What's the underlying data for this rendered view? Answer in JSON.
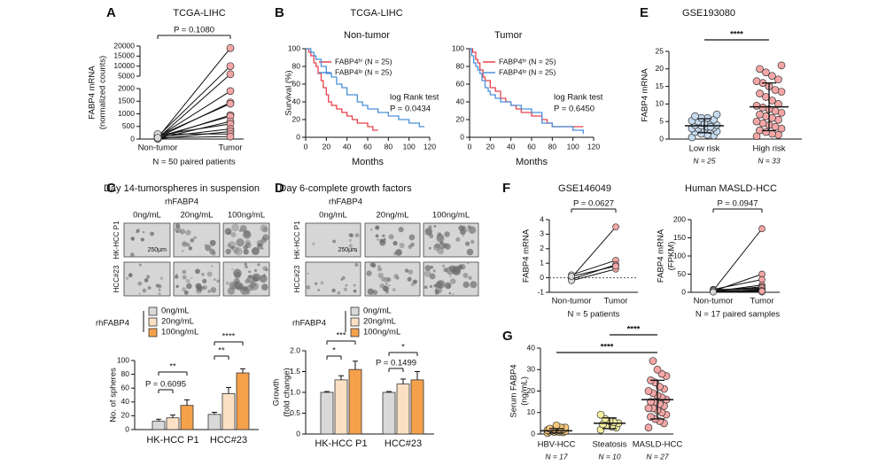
{
  "chart_data": [
    {
      "type": "paired",
      "label": "A",
      "title": "TCGA-LIHC",
      "ylabel": [
        "FABP4 mRNA",
        "(normalized counts)"
      ],
      "categories": [
        "Non-tumor",
        "Tumor"
      ],
      "colors": [
        "#d9d9d9",
        "#f4a6a6"
      ],
      "pairs": [
        [
          50,
          19000
        ],
        [
          100,
          10000
        ],
        [
          30,
          6000
        ],
        [
          80,
          1900
        ],
        [
          60,
          1450
        ],
        [
          120,
          1400
        ],
        [
          40,
          950
        ],
        [
          90,
          900
        ],
        [
          20,
          700
        ],
        [
          150,
          600
        ],
        [
          70,
          400
        ],
        [
          10,
          300
        ],
        [
          200,
          200
        ],
        [
          50,
          100
        ]
      ],
      "ylim": [
        0,
        2000
      ],
      "yticks": [
        0,
        500,
        1000,
        1500,
        2000
      ],
      "upper_ylim": [
        5000,
        20000
      ],
      "upper_yticks": [
        5000,
        10000,
        15000,
        20000
      ],
      "annotation": "P = 0.1080",
      "note": "N = 50 paired patients"
    },
    {
      "type": "survival",
      "label": "B",
      "title": "TCGA-LIHC",
      "subtitle": "Non-tumor",
      "xlabel": "Months",
      "ylabel": "Survival (%)",
      "xlim": [
        0,
        120
      ],
      "xticks": [
        0,
        20,
        40,
        60,
        80,
        100,
        120
      ],
      "ylim": [
        0,
        100
      ],
      "yticks": [
        0,
        20,
        40,
        60,
        80,
        100
      ],
      "series": [
        {
          "name": "FABP4ʰⁱ (N = 25)",
          "color": "#e8414a",
          "x": [
            0,
            3,
            5,
            8,
            10,
            12,
            15,
            17,
            20,
            22,
            25,
            30,
            35,
            40,
            45,
            50,
            60,
            65,
            70
          ],
          "values": [
            100,
            96,
            92,
            84,
            80,
            72,
            64,
            56,
            48,
            40,
            36,
            32,
            28,
            24,
            20,
            16,
            12,
            8,
            8
          ]
        },
        {
          "name": "FABP4ˡᵒ (N = 25)",
          "color": "#4a90d9",
          "x": [
            0,
            5,
            8,
            10,
            15,
            20,
            25,
            30,
            35,
            40,
            50,
            55,
            60,
            70,
            80,
            90,
            100,
            110,
            115
          ],
          "values": [
            100,
            96,
            92,
            88,
            80,
            72,
            68,
            60,
            56,
            48,
            40,
            36,
            32,
            28,
            24,
            20,
            16,
            12,
            12
          ]
        }
      ],
      "annotations": [
        "log Rank test",
        "P = 0.0434"
      ]
    },
    {
      "type": "survival",
      "subtitle": "Tumor",
      "xlabel": "Months",
      "xlim": [
        0,
        120
      ],
      "xticks": [
        0,
        20,
        40,
        60,
        80,
        100,
        120
      ],
      "ylim": [
        0,
        100
      ],
      "yticks": [
        0,
        20,
        40,
        60,
        80,
        100
      ],
      "series": [
        {
          "name": "FABP4ʰⁱ (N = 25)",
          "color": "#e8414a",
          "x": [
            0,
            3,
            6,
            8,
            10,
            13,
            15,
            20,
            25,
            30,
            35,
            40,
            45,
            50,
            60,
            70,
            75,
            80,
            110
          ],
          "values": [
            100,
            96,
            88,
            84,
            76,
            68,
            64,
            56,
            52,
            44,
            40,
            36,
            32,
            28,
            24,
            20,
            16,
            12,
            12
          ]
        },
        {
          "name": "FABP4ˡᵒ (N = 25)",
          "color": "#4a90d9",
          "x": [
            0,
            2,
            4,
            6,
            8,
            10,
            12,
            15,
            18,
            20,
            25,
            30,
            40,
            50,
            60,
            70,
            80,
            100,
            110
          ],
          "values": [
            100,
            92,
            84,
            80,
            76,
            72,
            64,
            56,
            52,
            48,
            44,
            40,
            36,
            32,
            28,
            16,
            12,
            8,
            4
          ]
        }
      ],
      "annotations": [
        "log Rank test",
        "P = 0.6450"
      ]
    },
    {
      "type": "dot",
      "label": "E",
      "title": "GSE193080",
      "ylabel": [
        "FABP4 mRNA"
      ],
      "categories": [
        "Low risk",
        "High risk"
      ],
      "n_labels": [
        "N = 25",
        "N = 33"
      ],
      "colors": [
        "#c6dbef",
        "#f4a6a6"
      ],
      "points": [
        [
          0.5,
          1,
          1.2,
          1.5,
          2,
          2.2,
          2.5,
          2.8,
          3,
          3,
          3.2,
          3.5,
          3.8,
          4,
          4,
          4.2,
          4.5,
          5,
          5.2,
          5.5,
          6,
          6,
          6.5,
          7,
          3.5
        ],
        [
          0.8,
          1.2,
          1.5,
          2,
          2.5,
          3,
          3.5,
          4,
          4.5,
          5,
          5.5,
          6,
          6.5,
          7,
          7.5,
          8,
          8.5,
          9,
          9.5,
          10,
          11,
          12,
          13,
          13.5,
          14,
          15,
          16,
          16.5,
          17,
          18,
          19,
          20,
          21
        ]
      ],
      "means": [
        3.8,
        9.2
      ],
      "sds": [
        2.0,
        6.8
      ],
      "ylim": [
        0,
        25
      ],
      "yticks": [
        0,
        5,
        10,
        15,
        20,
        25
      ],
      "annotations": [
        "****"
      ]
    },
    {
      "type": "images",
      "label": "C",
      "title": "Day 14-tumorspheres in suspension",
      "subtitle": "rhFABP4",
      "columns": [
        "0ng/mL",
        "20ng/mL",
        "100ng/mL"
      ],
      "rows": [
        "HK-HCC P1",
        "HCC#23"
      ],
      "scale_bar": "250µm"
    },
    {
      "type": "bar",
      "legend_title": "rhFABP4",
      "ylabel": [
        "No. of spheres"
      ],
      "categories": [
        "HK-HCC P1",
        "HCC#23"
      ],
      "series": [
        {
          "name": "0ng/mL",
          "color": "#d9d9d9",
          "values": [
            12,
            22
          ],
          "errors": [
            3,
            3
          ]
        },
        {
          "name": "20ng/mL",
          "color": "#fbe0c4",
          "values": [
            17,
            52
          ],
          "errors": [
            4,
            9
          ]
        },
        {
          "name": "100ng/mL",
          "color": "#f5a14b",
          "values": [
            35,
            82
          ],
          "errors": [
            8,
            6
          ]
        }
      ],
      "ylim": [
        0,
        100
      ],
      "yticks": [
        0,
        20,
        40,
        60,
        80,
        100
      ],
      "annotations": [
        "**",
        "P = 0.6095",
        "****",
        "**"
      ]
    },
    {
      "type": "images",
      "label": "D",
      "title": "Day 6-complete growth factors",
      "subtitle": "rhFABP4",
      "columns": [
        "0ng/mL",
        "20ng/mL",
        "100ng/mL"
      ],
      "rows": [
        "HK-HCC P1",
        "HCC#23"
      ],
      "scale_bar": "250µm"
    },
    {
      "type": "bar",
      "legend_title": "rhFABP4",
      "ylabel": [
        "Growth",
        "(fold change)"
      ],
      "categories": [
        "HK-HCC P1",
        "HCC#23"
      ],
      "series": [
        {
          "name": "0ng/mL",
          "color": "#d9d9d9",
          "values": [
            1.0,
            1.0
          ],
          "errors": [
            0.02,
            0.02
          ]
        },
        {
          "name": "20ng/mL",
          "color": "#fbe0c4",
          "values": [
            1.3,
            1.2
          ],
          "errors": [
            0.1,
            0.12
          ]
        },
        {
          "name": "100ng/mL",
          "color": "#f5a14b",
          "values": [
            1.55,
            1.3
          ],
          "errors": [
            0.2,
            0.2
          ]
        }
      ],
      "ylim": [
        0,
        2
      ],
      "yticks": [
        0,
        0.5,
        {
          "value": 1,
          "label": "1.0"
        },
        1.5,
        {
          "value": 2,
          "label": "2.0"
        }
      ],
      "annotations": [
        "***",
        "*",
        "*",
        "P = 0.1499"
      ]
    },
    {
      "type": "paired",
      "label": "F",
      "title": "GSE146049",
      "ylabel": [
        "FABP4 mRNA"
      ],
      "categories": [
        "Non-tumor",
        "Tumor"
      ],
      "colors": [
        "#d9d9d9",
        "#f4a6a6"
      ],
      "pairs": [
        [
          0.0,
          3.5
        ],
        [
          0.2,
          1.2
        ],
        [
          -0.1,
          0.9
        ],
        [
          -0.2,
          0.6
        ],
        [
          0.1,
          0.8
        ]
      ],
      "ylim": [
        -1,
        4
      ],
      "yticks": [
        -1,
        0,
        1,
        2,
        3,
        4
      ],
      "hline": 0,
      "annotation": "P = 0.0627",
      "note": "N = 5 patients"
    },
    {
      "type": "paired",
      "title": "Human MASLD-HCC",
      "ylabel": [
        "FABP4 mRNA",
        "(FPKM)"
      ],
      "categories": [
        "Non-tumor",
        "Tumor"
      ],
      "colors": [
        "#d9d9d9",
        "#f4a6a6"
      ],
      "pairs": [
        [
          5,
          175
        ],
        [
          3,
          50
        ],
        [
          8,
          35
        ],
        [
          2,
          20
        ],
        [
          4,
          15
        ],
        [
          6,
          10
        ],
        [
          1,
          8
        ],
        [
          3,
          5
        ],
        [
          2,
          3
        ],
        [
          4,
          2
        ],
        [
          7,
          12
        ],
        [
          1,
          1
        ],
        [
          2,
          4
        ],
        [
          3,
          6
        ],
        [
          5,
          2
        ],
        [
          2,
          1
        ],
        [
          1,
          3
        ]
      ],
      "ylim": [
        0,
        200
      ],
      "yticks": [
        0,
        50,
        100,
        150,
        200
      ],
      "annotation": "P = 0.0947",
      "note": "N = 17 paired samples"
    },
    {
      "type": "dot",
      "label": "G",
      "ylabel": [
        "Serum FABP4",
        "(ng/mL)"
      ],
      "categories": [
        "HBV-HCC",
        "Steatosis",
        "MASLD-HCC"
      ],
      "n_labels": [
        "N = 17",
        "N = 10",
        "N = 27"
      ],
      "colors": [
        "#f7c87a",
        "#f4f0a0",
        "#f4a6a6"
      ],
      "points": [
        [
          0.5,
          0.8,
          1,
          1,
          1.2,
          1.3,
          1.5,
          1.5,
          1.6,
          1.8,
          2,
          2,
          2.2,
          2.5,
          3,
          3,
          4
        ],
        [
          2,
          3,
          3.5,
          4,
          4.5,
          5,
          5.5,
          6,
          7,
          9
        ],
        [
          3,
          5,
          6,
          7,
          8,
          9,
          10,
          11,
          12,
          12,
          13,
          14,
          15,
          15,
          16,
          17,
          18,
          19,
          20,
          21,
          22,
          24,
          25,
          27,
          28,
          30,
          34
        ]
      ],
      "means": [
        1.5,
        5,
        16
      ],
      "sds": [
        1,
        2.5,
        9
      ],
      "ylim": [
        0,
        40
      ],
      "yticks": [
        0,
        10,
        20,
        30,
        40
      ],
      "annotations": [
        "****",
        "****"
      ]
    }
  ]
}
